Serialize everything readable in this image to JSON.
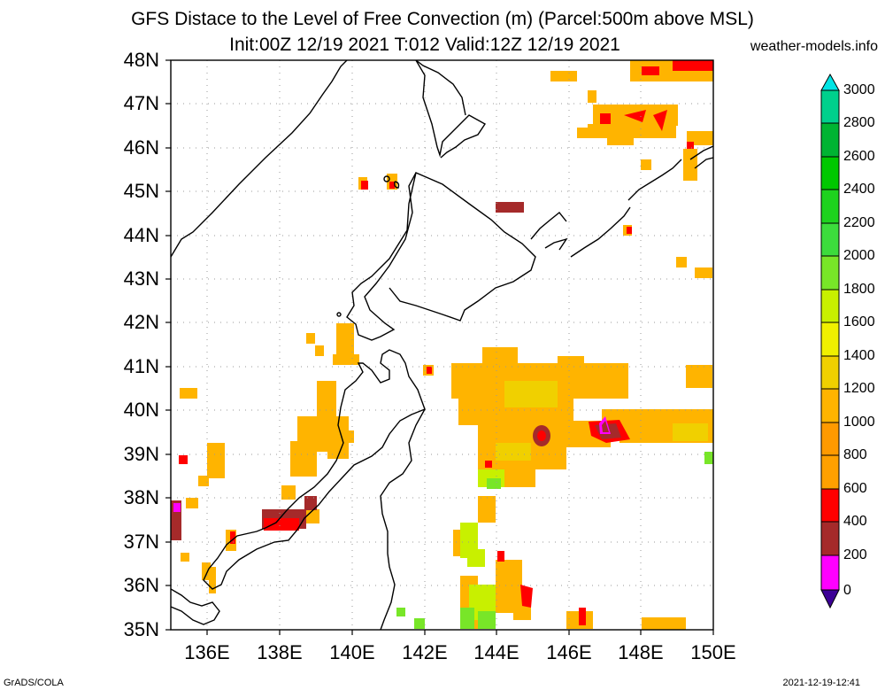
{
  "title": {
    "line1": "GFS Distace to the Level of Free Convection (m) (Parcel:500m above MSL)",
    "line2": "Init:00Z 12/19 2021 T:012 Valid:12Z 12/19 2021"
  },
  "source": "weather-models.info",
  "footer": {
    "left": "GrADS/COLA",
    "right": "2021-12-19-12:41"
  },
  "map": {
    "lat_range": [
      35,
      48
    ],
    "lon_range": [
      135,
      150
    ],
    "lat_labels": [
      "48N",
      "47N",
      "46N",
      "45N",
      "44N",
      "43N",
      "42N",
      "41N",
      "40N",
      "39N",
      "38N",
      "37N",
      "36N",
      "35N"
    ],
    "lon_labels": [
      "136E",
      "138E",
      "140E",
      "142E",
      "144E",
      "146E",
      "148E",
      "150E"
    ],
    "grid_lines": true
  },
  "colorbar": {
    "labels": [
      "3000",
      "2800",
      "2600",
      "2400",
      "2200",
      "2000",
      "1800",
      "1600",
      "1400",
      "1200",
      "1000",
      "800",
      "600",
      "400",
      "200",
      "0"
    ],
    "colors": [
      "#00e4e4",
      "#00d08c",
      "#00b432",
      "#00c800",
      "#1ed21e",
      "#3cdc3c",
      "#78e628",
      "#c8f000",
      "#f0f000",
      "#f0d000",
      "#ffb400",
      "#ff9a00",
      "#ff0000",
      "#a52a2a",
      "#ff00ff",
      "#3c0096"
    ],
    "colors_note": "top to bottom"
  }
}
